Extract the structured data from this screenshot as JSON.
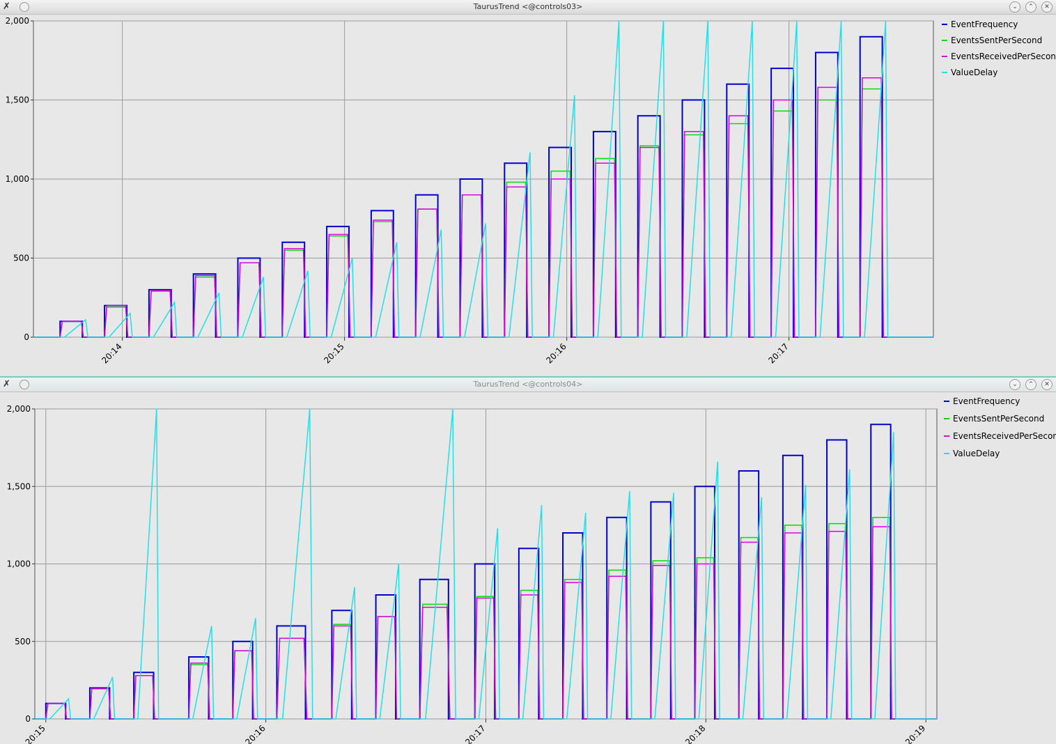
{
  "windows": [
    {
      "title": "TaurusTrend <@controls03>",
      "legend": [
        {
          "name": "EventFrequency",
          "color": "#0000cc"
        },
        {
          "name": "EventsSentPerSecond",
          "color": "#00dd00"
        },
        {
          "name": "EventsReceivedPerSecond",
          "color": "#dd00dd"
        },
        {
          "name": "ValueDelay",
          "color": "#22e0e8"
        }
      ]
    },
    {
      "title": "TaurusTrend <@controls04>",
      "legend": [
        {
          "name": "EventFrequency",
          "color": "#0000cc"
        },
        {
          "name": "EventsSentPerSecond",
          "color": "#00dd00"
        },
        {
          "name": "EventsReceivedPerSecond",
          "color": "#dd00dd"
        },
        {
          "name": "ValueDelay",
          "color": "#22e0e8"
        }
      ]
    }
  ],
  "titlebar_icons": [
    "x-logo-icon",
    "pin-circle-icon",
    "minimize-icon",
    "maximize-icon",
    "close-icon"
  ],
  "chart_data": [
    {
      "type": "line",
      "ylim": [
        0,
        2000
      ],
      "yticks": [
        "0",
        "500",
        "1,000",
        "1,500",
        "2,000"
      ],
      "ytick_values": [
        0,
        500,
        1000,
        1500,
        2000
      ],
      "xlim_minutes": [
        13.6,
        17.65
      ],
      "xticks": [
        "20:14",
        "20:15",
        "20:16",
        "20:17"
      ],
      "xtick_values_minutes": [
        14,
        15,
        16,
        17
      ],
      "grid": true,
      "legend_position": "right",
      "steps": [
        {
          "start": 13.72,
          "end": 13.82,
          "freq": 100,
          "sent": 100,
          "recv": 100,
          "delay": 110
        },
        {
          "start": 13.92,
          "end": 14.02,
          "freq": 200,
          "sent": 190,
          "recv": 200,
          "delay": 150
        },
        {
          "start": 14.12,
          "end": 14.22,
          "freq": 300,
          "sent": 290,
          "recv": 295,
          "delay": 220
        },
        {
          "start": 14.32,
          "end": 14.42,
          "freq": 400,
          "sent": 380,
          "recv": 390,
          "delay": 280
        },
        {
          "start": 14.52,
          "end": 14.62,
          "freq": 500,
          "sent": 470,
          "recv": 470,
          "delay": 380
        },
        {
          "start": 14.72,
          "end": 14.82,
          "freq": 600,
          "sent": 550,
          "recv": 560,
          "delay": 420
        },
        {
          "start": 14.92,
          "end": 15.02,
          "freq": 700,
          "sent": 640,
          "recv": 650,
          "delay": 500
        },
        {
          "start": 15.12,
          "end": 15.22,
          "freq": 800,
          "sent": 730,
          "recv": 740,
          "delay": 600
        },
        {
          "start": 15.32,
          "end": 15.42,
          "freq": 900,
          "sent": 810,
          "recv": 810,
          "delay": 680
        },
        {
          "start": 15.52,
          "end": 15.62,
          "freq": 1000,
          "sent": 900,
          "recv": 900,
          "delay": 720
        },
        {
          "start": 15.72,
          "end": 15.82,
          "freq": 1100,
          "sent": 980,
          "recv": 950,
          "delay": 1170
        },
        {
          "start": 15.92,
          "end": 16.02,
          "freq": 1200,
          "sent": 1050,
          "recv": 1000,
          "delay": 1530
        },
        {
          "start": 16.12,
          "end": 16.22,
          "freq": 1300,
          "sent": 1130,
          "recv": 1100,
          "delay": 2000
        },
        {
          "start": 16.32,
          "end": 16.42,
          "freq": 1400,
          "sent": 1210,
          "recv": 1200,
          "delay": 2000
        },
        {
          "start": 16.52,
          "end": 16.62,
          "freq": 1500,
          "sent": 1280,
          "recv": 1300,
          "delay": 2000
        },
        {
          "start": 16.72,
          "end": 16.82,
          "freq": 1600,
          "sent": 1350,
          "recv": 1400,
          "delay": 2000
        },
        {
          "start": 16.92,
          "end": 17.02,
          "freq": 1700,
          "sent": 1430,
          "recv": 1500,
          "delay": 2000
        },
        {
          "start": 17.12,
          "end": 17.22,
          "freq": 1800,
          "sent": 1500,
          "recv": 1580,
          "delay": 2000
        },
        {
          "start": 17.32,
          "end": 17.42,
          "freq": 1900,
          "sent": 1570,
          "recv": 1640,
          "delay": 2000
        }
      ]
    },
    {
      "type": "line",
      "ylim": [
        0,
        2000
      ],
      "yticks": [
        "0",
        "500",
        "1,000",
        "1,500",
        "2,000"
      ],
      "ytick_values": [
        0,
        500,
        1000,
        1500,
        2000
      ],
      "xlim_minutes": [
        14.95,
        19.05
      ],
      "xticks": [
        "20:15",
        "20:16",
        "20:17",
        "20:18",
        "20:19"
      ],
      "xtick_values_minutes": [
        15,
        16,
        17,
        18,
        19
      ],
      "grid": true,
      "legend_position": "right",
      "steps": [
        {
          "start": 15.0,
          "end": 15.09,
          "freq": 100,
          "sent": 100,
          "recv": 100,
          "delay": 130
        },
        {
          "start": 15.2,
          "end": 15.29,
          "freq": 200,
          "sent": 195,
          "recv": 195,
          "delay": 270
        },
        {
          "start": 15.4,
          "end": 15.49,
          "freq": 300,
          "sent": 280,
          "recv": 280,
          "delay": 2000
        },
        {
          "start": 15.65,
          "end": 15.74,
          "freq": 400,
          "sent": 350,
          "recv": 360,
          "delay": 600
        },
        {
          "start": 15.85,
          "end": 15.94,
          "freq": 500,
          "sent": 440,
          "recv": 440,
          "delay": 650
        },
        {
          "start": 16.05,
          "end": 16.18,
          "freq": 600,
          "sent": 520,
          "recv": 520,
          "delay": 2000
        },
        {
          "start": 16.3,
          "end": 16.39,
          "freq": 700,
          "sent": 610,
          "recv": 600,
          "delay": 850
        },
        {
          "start": 16.5,
          "end": 16.59,
          "freq": 800,
          "sent": 660,
          "recv": 660,
          "delay": 1000
        },
        {
          "start": 16.7,
          "end": 16.83,
          "freq": 900,
          "sent": 740,
          "recv": 720,
          "delay": 2000
        },
        {
          "start": 16.95,
          "end": 17.04,
          "freq": 1000,
          "sent": 790,
          "recv": 780,
          "delay": 1230
        },
        {
          "start": 17.15,
          "end": 17.24,
          "freq": 1100,
          "sent": 830,
          "recv": 800,
          "delay": 1380
        },
        {
          "start": 17.35,
          "end": 17.44,
          "freq": 1200,
          "sent": 900,
          "recv": 880,
          "delay": 1330
        },
        {
          "start": 17.55,
          "end": 17.64,
          "freq": 1300,
          "sent": 960,
          "recv": 920,
          "delay": 1470
        },
        {
          "start": 17.75,
          "end": 17.84,
          "freq": 1400,
          "sent": 1020,
          "recv": 990,
          "delay": 1460
        },
        {
          "start": 17.95,
          "end": 18.04,
          "freq": 1500,
          "sent": 1040,
          "recv": 1000,
          "delay": 1660
        },
        {
          "start": 18.15,
          "end": 18.24,
          "freq": 1600,
          "sent": 1170,
          "recv": 1140,
          "delay": 1430
        },
        {
          "start": 18.35,
          "end": 18.44,
          "freq": 1700,
          "sent": 1250,
          "recv": 1200,
          "delay": 1510
        },
        {
          "start": 18.55,
          "end": 18.64,
          "freq": 1800,
          "sent": 1260,
          "recv": 1210,
          "delay": 1610
        },
        {
          "start": 18.75,
          "end": 18.84,
          "freq": 1900,
          "sent": 1300,
          "recv": 1240,
          "delay": 1850
        }
      ]
    }
  ]
}
